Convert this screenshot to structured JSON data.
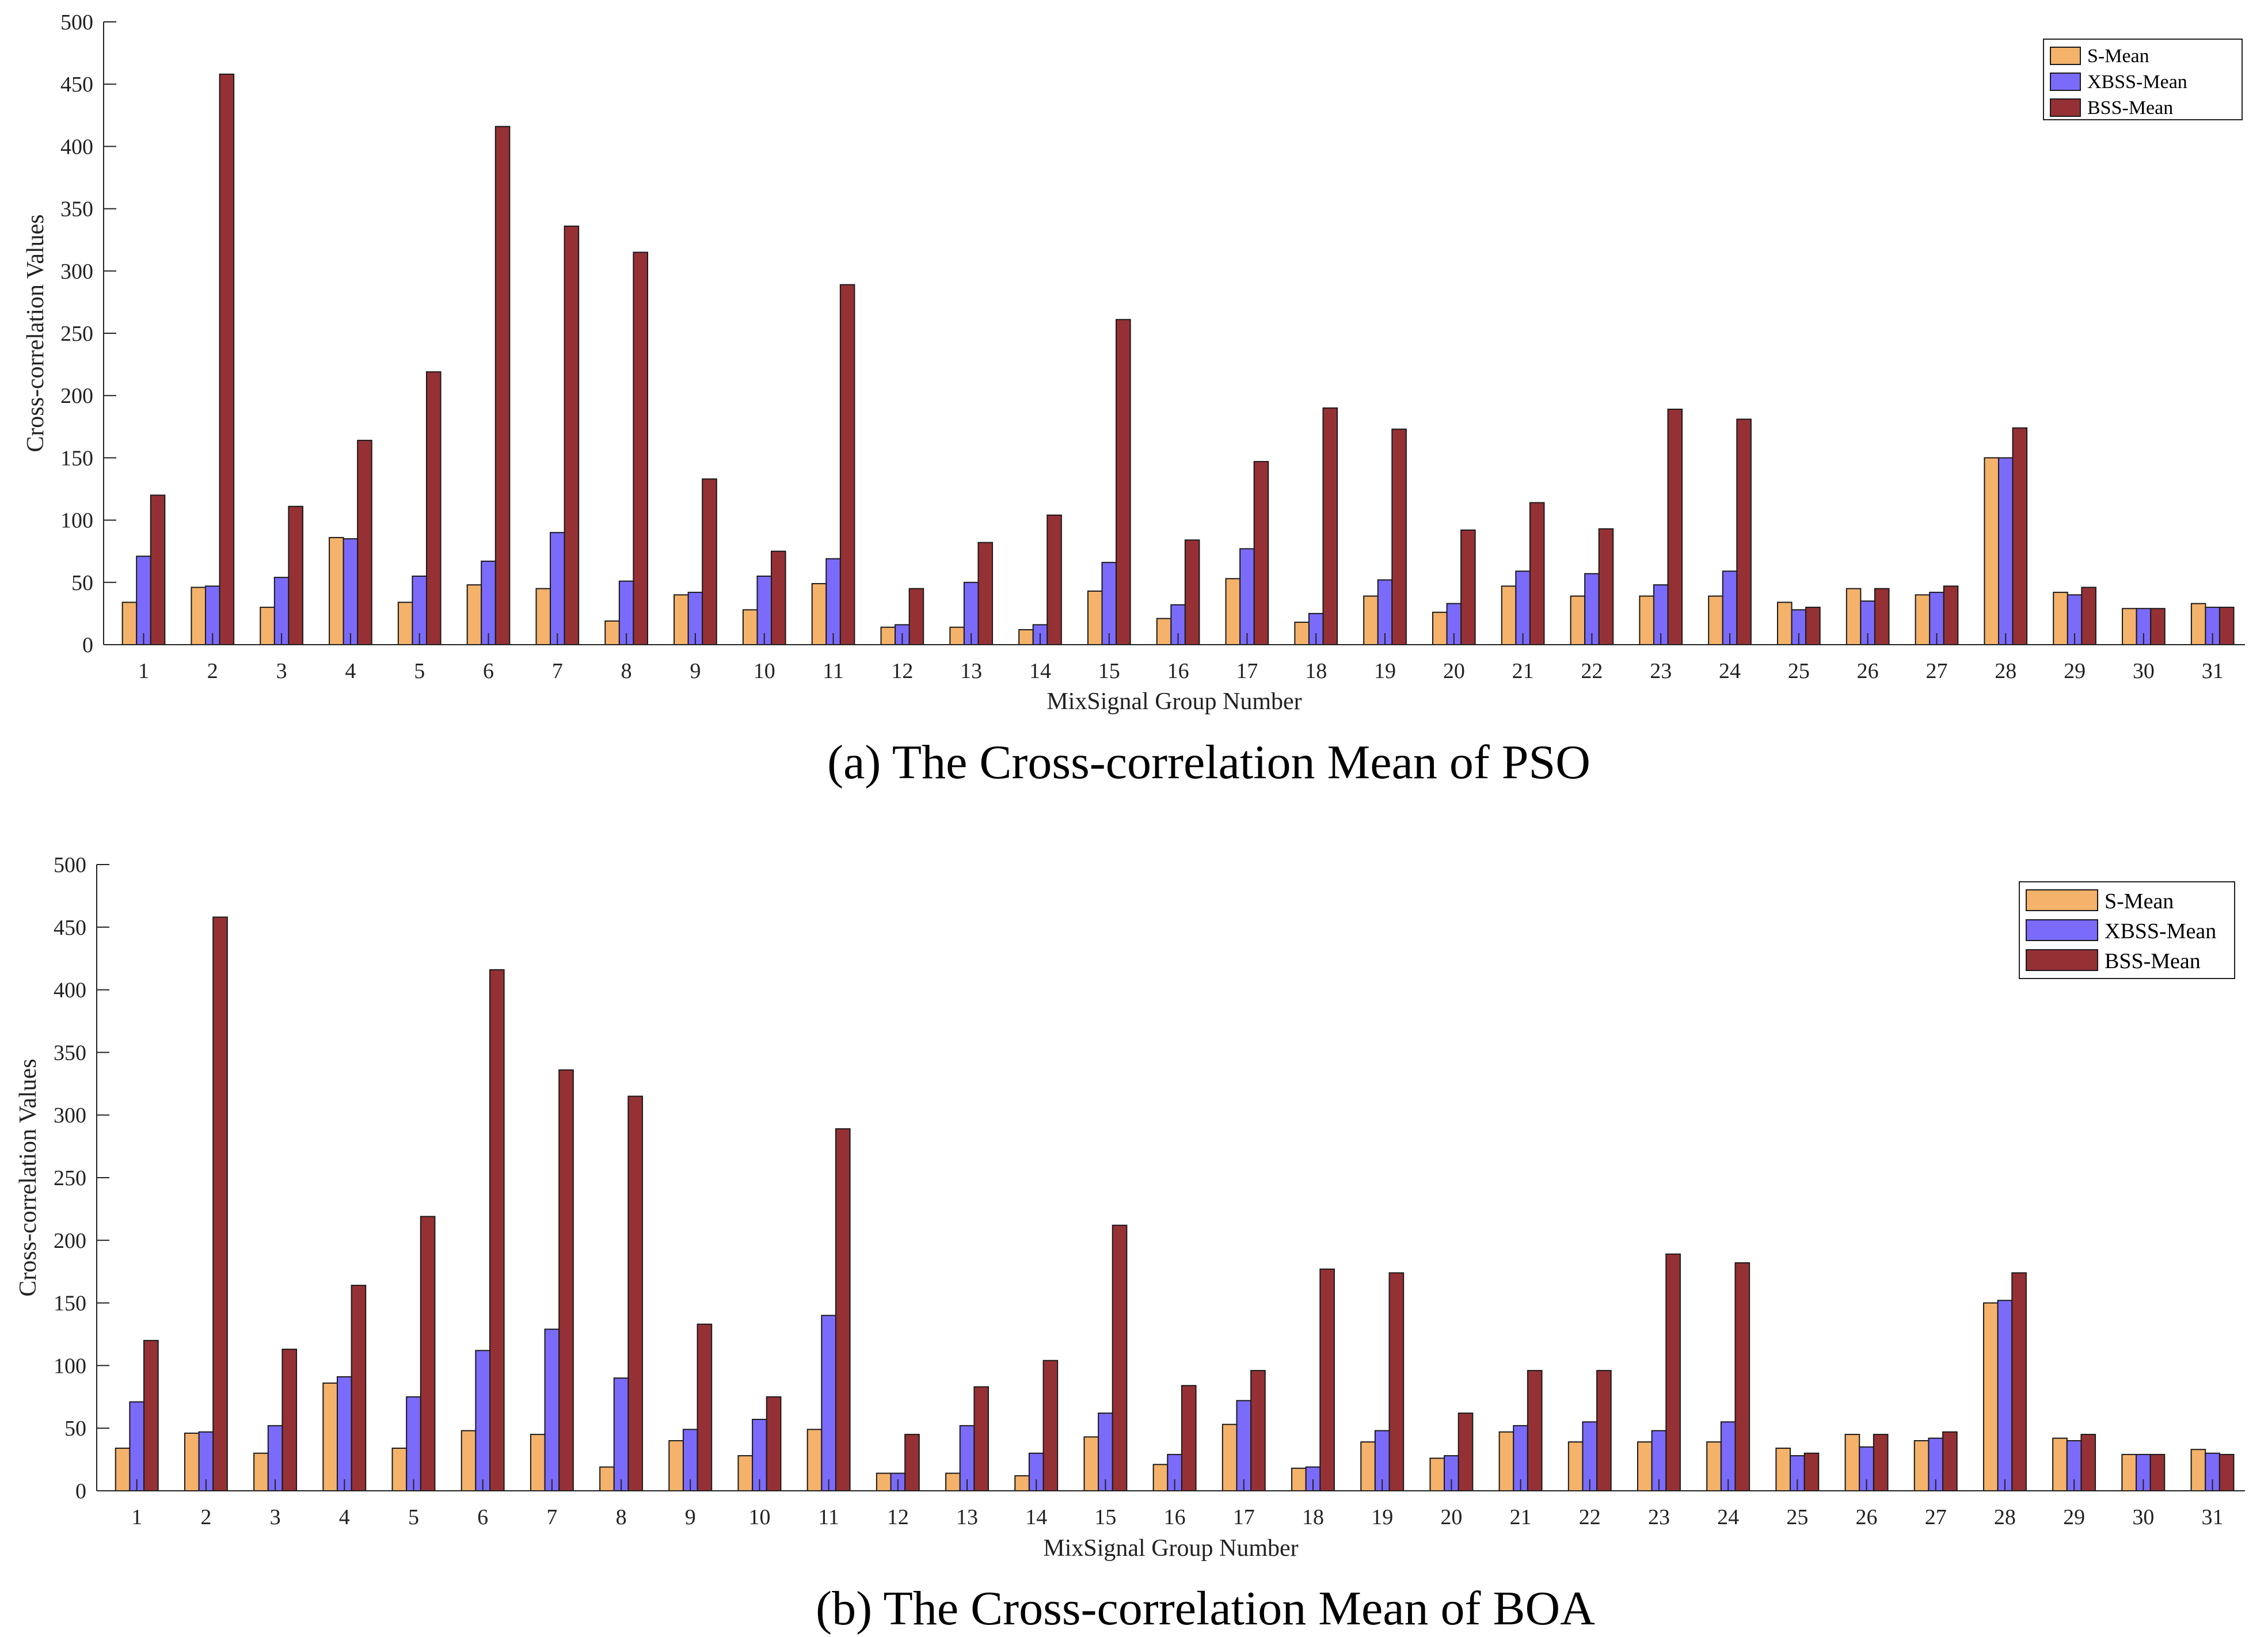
{
  "chart_data": [
    {
      "type": "bar",
      "caption": "(a)  The Cross-correlation Mean of PSO",
      "xlabel": "MixSignal Group Number",
      "ylabel": "Cross-correlation Values",
      "ylim": [
        0,
        500
      ],
      "yticks": [
        "0",
        "50",
        "100",
        "150",
        "200",
        "250",
        "300",
        "350",
        "400",
        "450",
        "500"
      ],
      "legend_position": "top-right",
      "categories": [
        "1",
        "2",
        "3",
        "4",
        "5",
        "6",
        "7",
        "8",
        "9",
        "10",
        "11",
        "12",
        "13",
        "14",
        "15",
        "16",
        "17",
        "18",
        "19",
        "20",
        "21",
        "22",
        "23",
        "24",
        "25",
        "26",
        "27",
        "28",
        "29",
        "30",
        "31"
      ],
      "series": [
        {
          "name": "S-Mean",
          "color": "#F4B26B",
          "values": [
            34,
            46,
            30,
            86,
            34,
            48,
            45,
            19,
            40,
            28,
            49,
            14,
            14,
            12,
            43,
            21,
            53,
            18,
            39,
            26,
            47,
            39,
            39,
            39,
            34,
            45,
            40,
            150,
            42,
            29,
            33
          ]
        },
        {
          "name": "XBSS-Mean",
          "color": "#7B6BFA",
          "values": [
            71,
            47,
            54,
            85,
            55,
            67,
            90,
            51,
            42,
            55,
            69,
            16,
            50,
            16,
            66,
            32,
            77,
            25,
            52,
            33,
            59,
            57,
            48,
            59,
            28,
            35,
            42,
            150,
            40,
            29,
            30
          ]
        },
        {
          "name": "BSS-Mean",
          "color": "#953135",
          "values": [
            120,
            458,
            111,
            164,
            219,
            416,
            336,
            315,
            133,
            75,
            289,
            45,
            82,
            104,
            261,
            84,
            147,
            190,
            173,
            92,
            114,
            93,
            189,
            181,
            30,
            45,
            47,
            174,
            46,
            29,
            30
          ]
        }
      ]
    },
    {
      "type": "bar",
      "caption": "(b)  The Cross-correlation Mean  of BOA",
      "xlabel": "MixSignal Group Number",
      "ylabel": "Cross-correlation Values",
      "ylim": [
        0,
        500
      ],
      "yticks": [
        "0",
        "50",
        "100",
        "150",
        "200",
        "250",
        "300",
        "350",
        "400",
        "450",
        "500"
      ],
      "legend_position": "top-right",
      "categories": [
        "1",
        "2",
        "3",
        "4",
        "5",
        "6",
        "7",
        "8",
        "9",
        "10",
        "11",
        "12",
        "13",
        "14",
        "15",
        "16",
        "17",
        "18",
        "19",
        "20",
        "21",
        "22",
        "23",
        "24",
        "25",
        "26",
        "27",
        "28",
        "29",
        "30",
        "31"
      ],
      "series": [
        {
          "name": "S-Mean",
          "color": "#F4B26B",
          "values": [
            34,
            46,
            30,
            86,
            34,
            48,
            45,
            19,
            40,
            28,
            49,
            14,
            14,
            12,
            43,
            21,
            53,
            18,
            39,
            26,
            47,
            39,
            39,
            39,
            34,
            45,
            40,
            150,
            42,
            29,
            33
          ]
        },
        {
          "name": "XBSS-Mean",
          "color": "#7B6BFA",
          "values": [
            71,
            47,
            52,
            91,
            75,
            112,
            129,
            90,
            49,
            57,
            140,
            14,
            52,
            30,
            62,
            29,
            72,
            19,
            48,
            28,
            52,
            55,
            48,
            55,
            28,
            35,
            42,
            152,
            40,
            29,
            30
          ]
        },
        {
          "name": "BSS-Mean",
          "color": "#953135",
          "values": [
            120,
            458,
            113,
            164,
            219,
            416,
            336,
            315,
            133,
            75,
            289,
            45,
            83,
            104,
            212,
            84,
            96,
            177,
            174,
            62,
            96,
            96,
            189,
            182,
            30,
            45,
            47,
            174,
            45,
            29,
            29
          ]
        }
      ]
    }
  ]
}
